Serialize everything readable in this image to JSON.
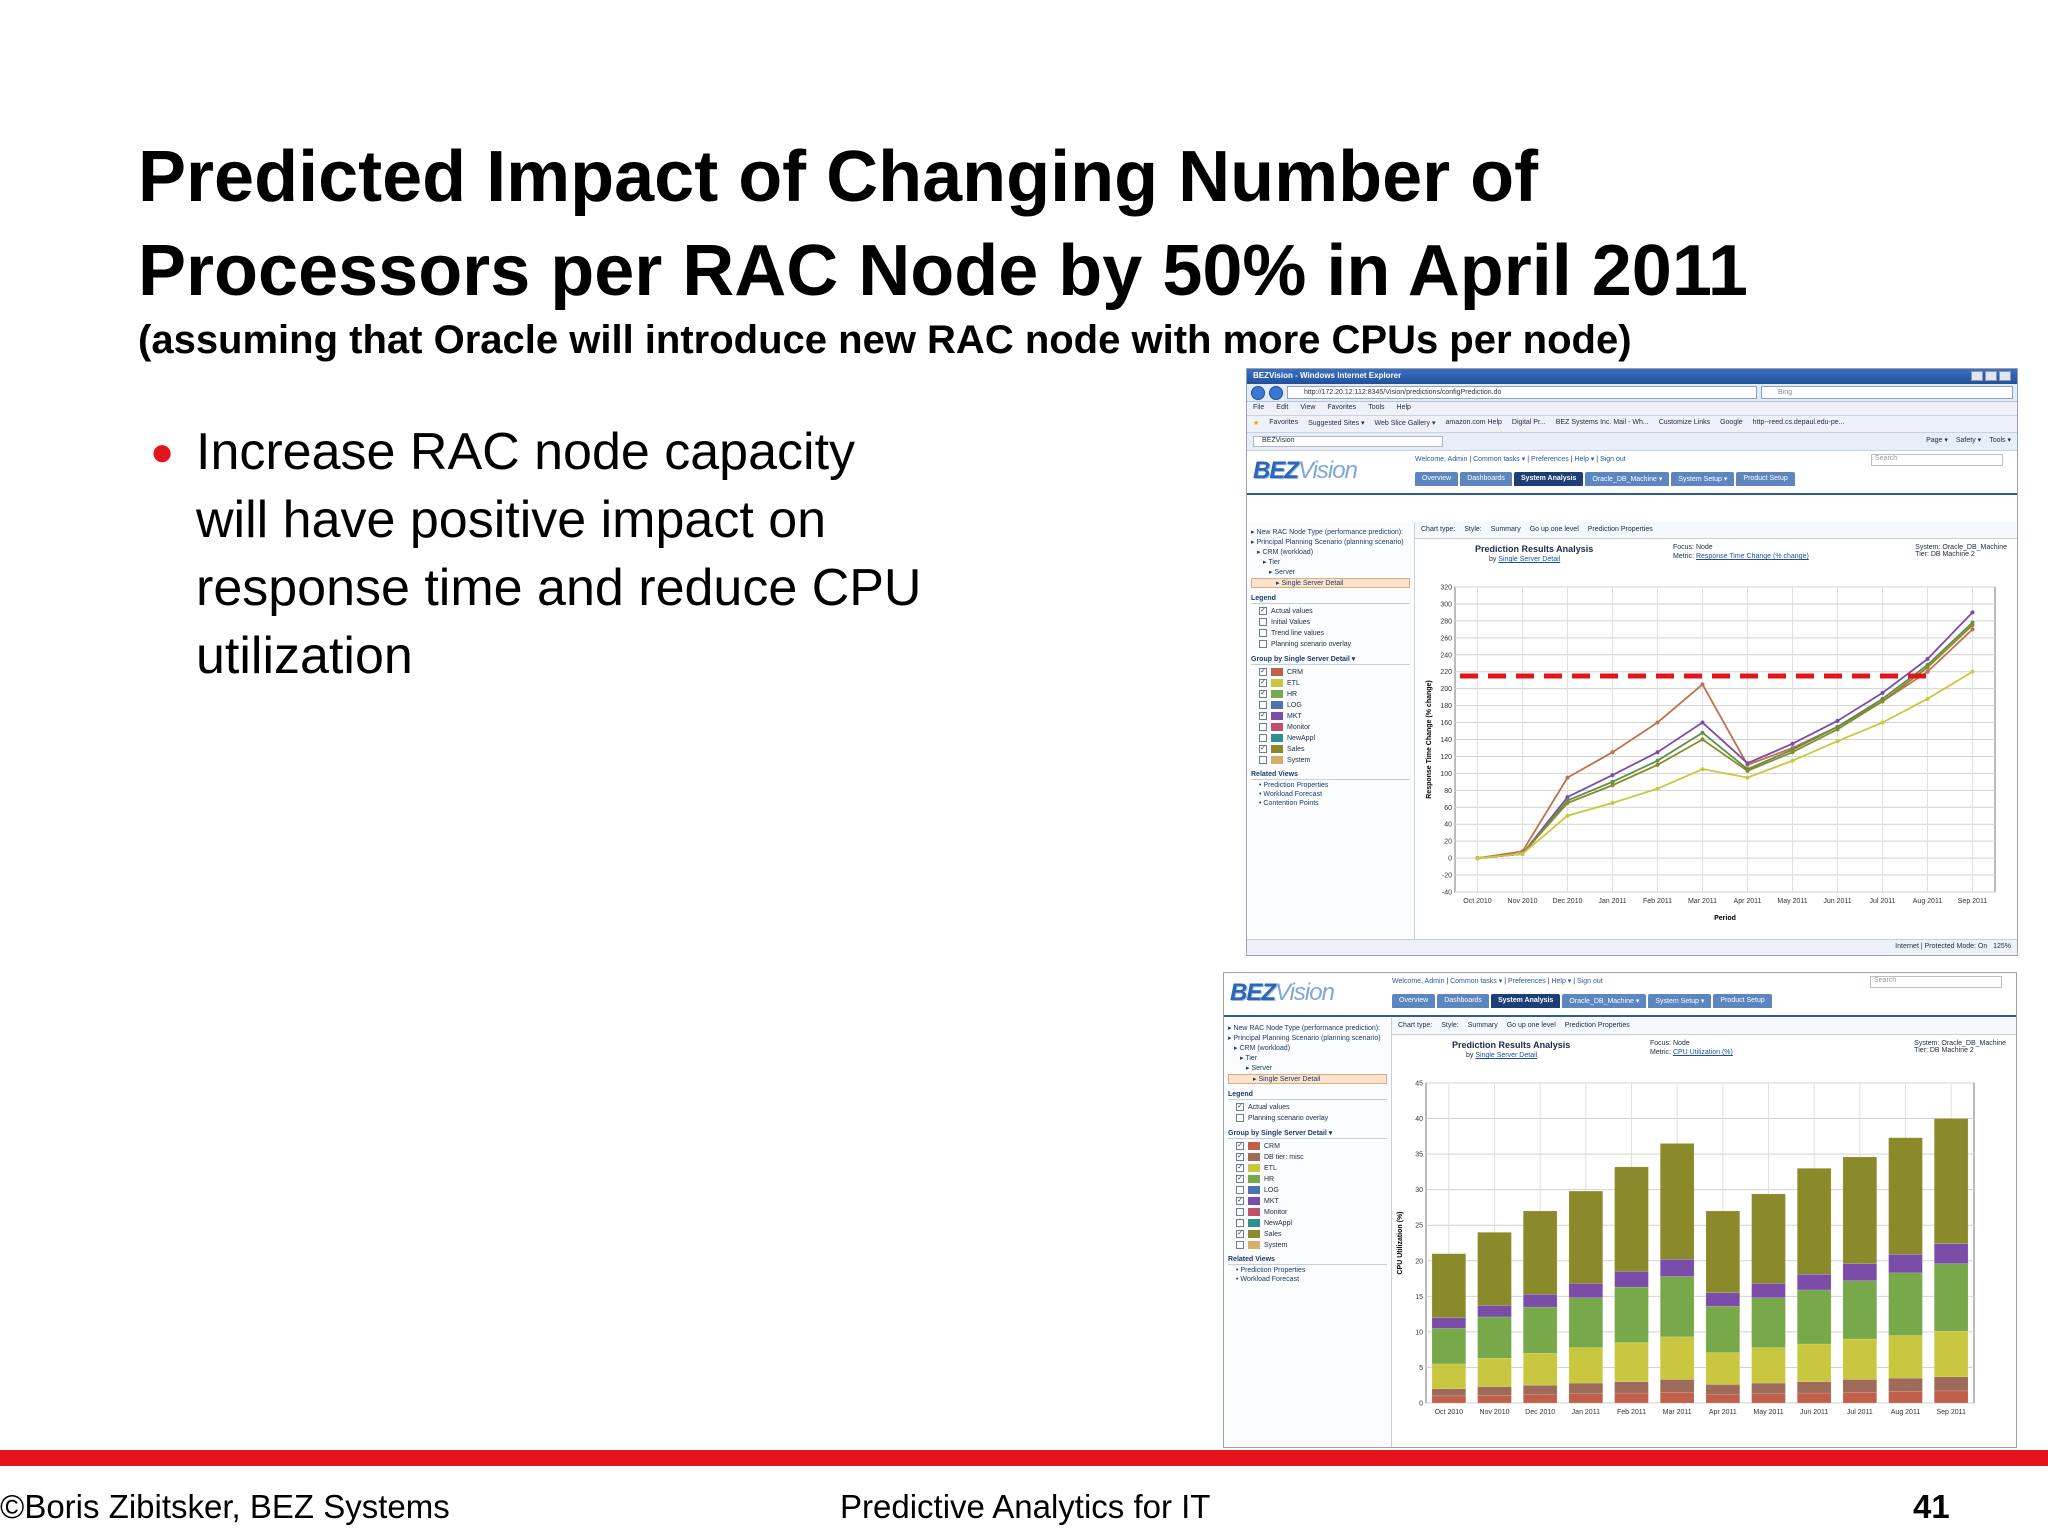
{
  "slide": {
    "title_line1": "Predicted Impact of  Changing Number of",
    "title_line2": "Processors per RAC Node by 50% in April 2011",
    "subtitle": "(assuming that Oracle will introduce new RAC node with more CPUs per node)",
    "bullet": "Increase RAC node capacity will have positive impact on response time and reduce CPU utilization",
    "footer_left": "©Boris Zibitsker, BEZ Systems",
    "footer_center": "Predictive Analytics for IT",
    "page_number": "41",
    "accent_color": "#e3141c"
  },
  "ie": {
    "window_title": "BEZVision - Windows Internet Explorer",
    "url": "http://172.20.12.112:8345/Vision/predictions/configPrediction.do",
    "search_engine": "Bing",
    "menu": [
      "File",
      "Edit",
      "View",
      "Favorites",
      "Tools",
      "Help"
    ],
    "favorites": [
      "Favorites",
      "Suggested Sites ▾",
      "Web Slice Gallery ▾",
      "amazon.com Help",
      "Digital Pr...",
      "BEZ Systems Inc. Mail - Wh...",
      "Customize Links",
      "Google",
      "http--reed.cs.depaul.edu-pe..."
    ],
    "tab": "BEZVision",
    "commands": [
      "Page ▾",
      "Safety ▾",
      "Tools ▾"
    ],
    "status": "Internet | Protected Mode: On",
    "zoom": "125%"
  },
  "app": {
    "logo_a": "BEZ",
    "logo_b": "Vision",
    "welcome": "Welcome, Admin",
    "links": [
      "Common tasks ▾",
      "Preferences",
      "Help ▾",
      "Sign out"
    ],
    "search_placeholder": "Search",
    "tabs": [
      "Overview",
      "Dashboards",
      "System Analysis",
      "Oracle_DB_Machine ▾",
      "System Setup ▾",
      "Product Setup"
    ],
    "toolbar": [
      "Chart type:",
      "Style:",
      "Summary",
      "Go up one level",
      "Prediction Properties"
    ]
  },
  "top_panel": {
    "tree": [
      "New RAC Node Type (performance prediction):",
      "Principal Planning Scenario (planning scenario)",
      "CRM (workload)",
      "Tier",
      "Server",
      "Single Server Detail"
    ],
    "legend_title": "Legend",
    "legend": [
      {
        "label": "Actual values",
        "checked": true
      },
      {
        "label": "Initial Values",
        "checked": false
      },
      {
        "label": "Trend line values",
        "checked": false
      },
      {
        "label": "Planning scenario overlay",
        "checked": false
      }
    ],
    "group_title": "Group by Single Server Detail ▾",
    "group_items": [
      {
        "label": "CRM",
        "color": "#c0604a",
        "checked": true
      },
      {
        "label": "ETL",
        "color": "#c9c73f",
        "checked": true
      },
      {
        "label": "HR",
        "color": "#77a84a",
        "checked": true
      },
      {
        "label": "LOG",
        "color": "#4f73b0",
        "checked": false
      },
      {
        "label": "MKT",
        "color": "#7a4ea8",
        "checked": true
      },
      {
        "label": "Monitor",
        "color": "#c2506a",
        "checked": false
      },
      {
        "label": "NewAppl",
        "color": "#2f8f8a",
        "checked": false
      },
      {
        "label": "Sales",
        "color": "#8a8a2a",
        "checked": true
      },
      {
        "label": "System",
        "color": "#d6b06a",
        "checked": false
      }
    ],
    "related_title": "Related Views",
    "related": [
      "Prediction Properties",
      "Workload Forecast",
      "Contention Points"
    ],
    "chart_title": "Prediction Results Analysis",
    "by_label": "by",
    "by_value": "Single Server Detail",
    "focus": "Focus: Node",
    "metric_label": "Metric:",
    "metric_value": "Response Time Change (% change)",
    "system": "System: Oracle_DB_Machine",
    "tier": "Tier: DB Machine 2"
  },
  "bottom_panel": {
    "tree": [
      "New RAC Node Type (performance prediction):",
      "Principal Planning Scenario (planning scenario)",
      "CRM (workload)",
      "Tier",
      "Server",
      "Single Server Detail"
    ],
    "legend_title": "Legend",
    "legend": [
      {
        "label": "Actual values",
        "checked": true
      },
      {
        "label": "Planning scenario overlay",
        "checked": false
      }
    ],
    "group_title": "Group by Single Server Detail ▾",
    "group_items": [
      {
        "label": "CRM",
        "color": "#c0604a",
        "checked": true
      },
      {
        "label": "DB tier: misc",
        "color": "#9e6b5a",
        "checked": true
      },
      {
        "label": "ETL",
        "color": "#c9c73f",
        "checked": true
      },
      {
        "label": "HR",
        "color": "#77a84a",
        "checked": true
      },
      {
        "label": "LOG",
        "color": "#4f73b0",
        "checked": false
      },
      {
        "label": "MKT",
        "color": "#7a4ea8",
        "checked": true
      },
      {
        "label": "Monitor",
        "color": "#c2506a",
        "checked": false
      },
      {
        "label": "NewAppl",
        "color": "#2f8f8a",
        "checked": false
      },
      {
        "label": "Sales",
        "color": "#8a8a2a",
        "checked": true
      },
      {
        "label": "System",
        "color": "#d6b06a",
        "checked": false
      }
    ],
    "related_title": "Related Views",
    "related": [
      "Prediction Properties",
      "Workload Forecast"
    ],
    "chart_title": "Prediction Results Analysis",
    "by_label": "by",
    "by_value": "Single Server Detail",
    "focus": "Focus: Node",
    "metric_label": "Metric:",
    "metric_value": "CPU Utilization (%)",
    "system": "System: Oracle_DB_Machine",
    "tier": "Tier: DB Machine 2"
  },
  "chart_data": [
    {
      "type": "line",
      "xlabel": "Period",
      "ylabel": "Response Time Change (% change)",
      "ylim": [
        -40,
        320
      ],
      "yticks": [
        -40,
        -20,
        0,
        20,
        40,
        60,
        80,
        100,
        120,
        140,
        160,
        180,
        200,
        220,
        240,
        260,
        280,
        300,
        320
      ],
      "categories": [
        "Oct 2010",
        "Nov 2010",
        "Dec 2010",
        "Jan 2011",
        "Feb 2011",
        "Mar 2011",
        "Apr 2011",
        "May 2011",
        "Jun 2011",
        "Jul 2011",
        "Aug 2011",
        "Sep 2011"
      ],
      "series": [
        {
          "color": "#c0704a",
          "values": [
            0,
            8,
            95,
            125,
            160,
            205,
            110,
            130,
            155,
            185,
            220,
            270
          ]
        },
        {
          "color": "#7a4ea8",
          "values": [
            0,
            5,
            72,
            98,
            125,
            160,
            112,
            135,
            162,
            195,
            235,
            290
          ]
        },
        {
          "color": "#5f8f4a",
          "values": [
            0,
            5,
            68,
            90,
            115,
            148,
            105,
            128,
            155,
            188,
            228,
            278
          ]
        },
        {
          "color": "#8a8a2a",
          "values": [
            0,
            5,
            65,
            86,
            110,
            140,
            103,
            125,
            152,
            185,
            225,
            275
          ]
        },
        {
          "color": "#c9c73f",
          "values": [
            0,
            5,
            50,
            65,
            82,
            105,
            95,
            115,
            138,
            160,
            188,
            220
          ]
        }
      ],
      "threshold": {
        "value": 215,
        "color": "#e3141c",
        "style": "dashed"
      },
      "grid": true
    },
    {
      "type": "bar",
      "stacked": true,
      "xlabel": "",
      "ylabel": "CPU Utilization (%)",
      "ylim": [
        0,
        45
      ],
      "yticks": [
        0,
        5,
        10,
        15,
        20,
        25,
        30,
        35,
        40,
        45
      ],
      "categories": [
        "Oct 2010",
        "Nov 2010",
        "Dec 2010",
        "Jan 2011",
        "Feb 2011",
        "Mar 2011",
        "Apr 2011",
        "May 2011",
        "Jun 2011",
        "Jul 2011",
        "Aug 2011",
        "Sep 2011"
      ],
      "series": [
        {
          "color": "#c0604a",
          "values": [
            1.0,
            1.1,
            1.2,
            1.3,
            1.4,
            1.5,
            1.2,
            1.3,
            1.4,
            1.5,
            1.6,
            1.7
          ]
        },
        {
          "color": "#9e6b5a",
          "values": [
            1.0,
            1.2,
            1.3,
            1.5,
            1.6,
            1.8,
            1.4,
            1.5,
            1.6,
            1.8,
            1.9,
            2.0
          ]
        },
        {
          "color": "#c9c73f",
          "values": [
            3.5,
            4.0,
            4.5,
            5.0,
            5.5,
            6.0,
            4.5,
            5.0,
            5.3,
            5.7,
            6.0,
            6.4
          ]
        },
        {
          "color": "#77a84a",
          "values": [
            5.0,
            5.8,
            6.5,
            7.0,
            7.8,
            8.5,
            6.5,
            7.0,
            7.6,
            8.2,
            8.8,
            9.5
          ]
        },
        {
          "color": "#7a4ea8",
          "values": [
            1.5,
            1.6,
            1.8,
            2.0,
            2.2,
            2.4,
            1.9,
            2.0,
            2.2,
            2.4,
            2.6,
            2.8
          ]
        },
        {
          "color": "#8a8a2a",
          "values": [
            9.0,
            10.3,
            11.7,
            13.0,
            14.7,
            16.3,
            11.5,
            12.6,
            14.9,
            15.0,
            16.4,
            17.6
          ]
        }
      ],
      "grid": true
    }
  ]
}
